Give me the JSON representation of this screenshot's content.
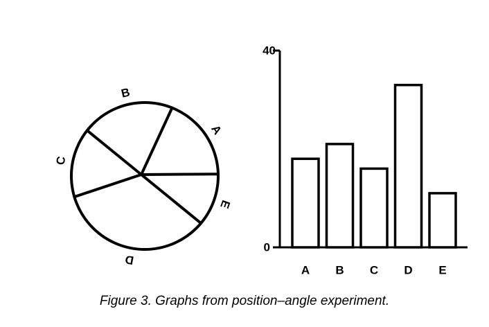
{
  "caption": "Figure 3. Graphs from position–angle experiment.",
  "chart_data": [
    {
      "type": "pie",
      "categories": [
        "A",
        "B",
        "C",
        "D",
        "E"
      ],
      "values": [
        18,
        21,
        16,
        34,
        11
      ],
      "title": ""
    },
    {
      "type": "bar",
      "categories": [
        "A",
        "B",
        "C",
        "D",
        "E"
      ],
      "values": [
        18,
        21,
        16,
        33,
        11
      ],
      "title": "",
      "xlabel": "",
      "ylabel": "",
      "ylim": [
        0,
        40
      ],
      "yticks": [
        "0",
        "40"
      ],
      "grid": false
    }
  ]
}
